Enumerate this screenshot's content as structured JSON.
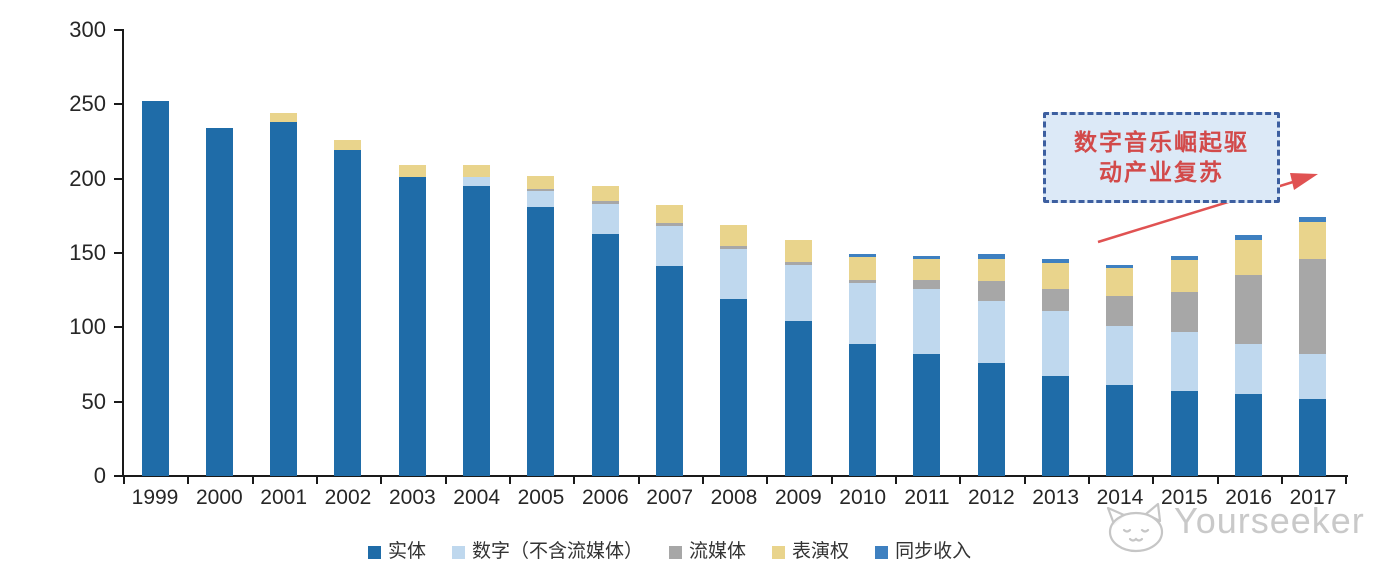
{
  "chart_data": {
    "type": "bar",
    "stacked": true,
    "categories": [
      "1999",
      "2000",
      "2001",
      "2002",
      "2003",
      "2004",
      "2005",
      "2006",
      "2007",
      "2008",
      "2009",
      "2010",
      "2011",
      "2012",
      "2013",
      "2014",
      "2015",
      "2016",
      "2017"
    ],
    "series": [
      {
        "name": "实体",
        "color": "#1F6CA8",
        "values": [
          252,
          234,
          238,
          219,
          201,
          195,
          181,
          163,
          141,
          119,
          104,
          89,
          82,
          76,
          67,
          61,
          57,
          55,
          52
        ]
      },
      {
        "name": "数字（不含流媒体）",
        "color": "#BFD8EE",
        "values": [
          0,
          0,
          0,
          0,
          0,
          6,
          11,
          20,
          27,
          34,
          38,
          41,
          44,
          42,
          44,
          40,
          40,
          34,
          30
        ]
      },
      {
        "name": "流媒体",
        "color": "#A7A7A7",
        "values": [
          0,
          0,
          0,
          0,
          0,
          0,
          1,
          2,
          2,
          2,
          2,
          2,
          6,
          13,
          15,
          20,
          27,
          46,
          64
        ]
      },
      {
        "name": "表演权",
        "color": "#E9D48C",
        "values": [
          0,
          0,
          6,
          7,
          8,
          8,
          9,
          10,
          12,
          14,
          15,
          15,
          14,
          15,
          17,
          19,
          21,
          24,
          25
        ]
      },
      {
        "name": "同步收入",
        "color": "#3E80C0",
        "values": [
          0,
          0,
          0,
          0,
          0,
          0,
          0,
          0,
          0,
          0,
          0,
          2,
          2,
          3,
          3,
          2,
          3,
          3,
          3
        ]
      }
    ],
    "y_ticks": [
      0,
      50,
      100,
      150,
      200,
      250,
      300
    ],
    "ylim": [
      0,
      300
    ],
    "xlabel": "",
    "ylabel": "",
    "title": "",
    "grid": false,
    "legend_position": "bottom"
  },
  "annotation": {
    "line1": "数字音乐崛起驱",
    "line2": "动产业复苏",
    "text_color": "#D24A4A",
    "box_fill": "#DCE9F7",
    "box_border": "#3D5FA0",
    "arrow_color": "#E05252"
  },
  "watermark": {
    "text": "Yourseeker",
    "color": "#C9C9C9",
    "logo": "cat-logo-icon"
  }
}
